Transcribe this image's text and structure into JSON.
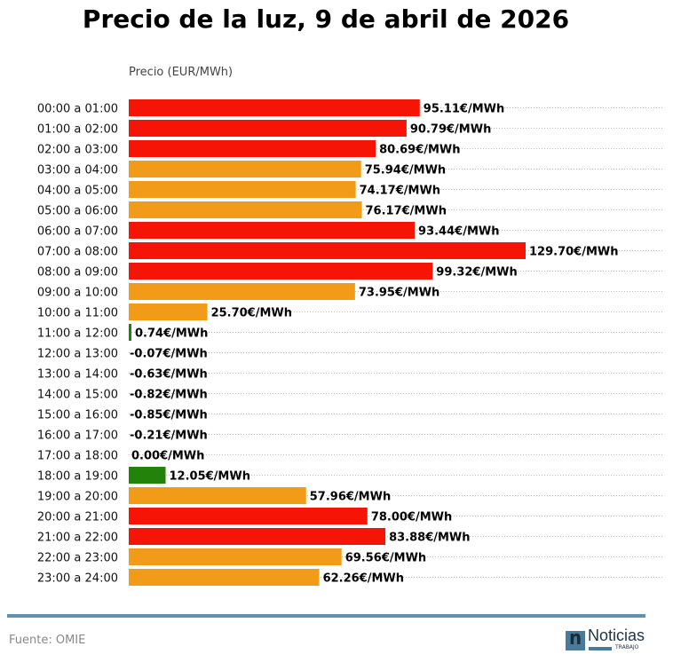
{
  "title": "Precio de la luz, 9 de abril de 2026",
  "footer": {
    "source": "Fuente: OMIE",
    "logo_word": "Noticias",
    "logo_sub": "TRABAJO",
    "logo_letter": "n"
  },
  "colors": {
    "high": "#f51406",
    "mid": "#f29b18",
    "low": "#23820a",
    "grid": "#bbbbbb"
  },
  "chart_data": {
    "type": "bar",
    "orientation": "horizontal",
    "title": "Precio de la luz, 9 de abril de 2026",
    "xlabel": "",
    "ylabel": "Precio (EUR/MWh)",
    "grid": true,
    "unit_suffix": "€/MWh",
    "categories": [
      "00:00 a 01:00",
      "01:00 a 02:00",
      "02:00 a 03:00",
      "03:00 a 04:00",
      "04:00 a 05:00",
      "05:00 a 06:00",
      "06:00 a 07:00",
      "07:00 a 08:00",
      "08:00 a 09:00",
      "09:00 a 10:00",
      "10:00 a 11:00",
      "11:00 a 12:00",
      "12:00 a 13:00",
      "13:00 a 14:00",
      "14:00 a 15:00",
      "15:00 a 16:00",
      "16:00 a 17:00",
      "17:00 a 18:00",
      "18:00 a 19:00",
      "19:00 a 20:00",
      "20:00 a 21:00",
      "21:00 a 22:00",
      "22:00 a 23:00",
      "23:00 a 24:00"
    ],
    "values": [
      95.11,
      90.79,
      80.69,
      75.94,
      74.17,
      76.17,
      93.44,
      129.7,
      99.32,
      73.95,
      25.7,
      0.74,
      -0.07,
      -0.63,
      -0.82,
      -0.85,
      -0.21,
      0.0,
      12.05,
      57.96,
      78.0,
      83.88,
      69.56,
      62.26
    ],
    "labels": [
      "95.11€/MWh",
      "90.79€/MWh",
      "80.69€/MWh",
      "75.94€/MWh",
      "74.17€/MWh",
      "76.17€/MWh",
      "93.44€/MWh",
      "129.70€/MWh",
      "99.32€/MWh",
      "73.95€/MWh",
      "25.70€/MWh",
      "0.74€/MWh",
      "-0.07€/MWh",
      "-0.63€/MWh",
      "-0.82€/MWh",
      "-0.85€/MWh",
      "-0.21€/MWh",
      "0.00€/MWh",
      "12.05€/MWh",
      "57.96€/MWh",
      "78.00€/MWh",
      "83.88€/MWh",
      "69.56€/MWh",
      "62.26€/MWh"
    ],
    "bar_colors": [
      "high",
      "high",
      "high",
      "mid",
      "mid",
      "mid",
      "high",
      "high",
      "high",
      "mid",
      "mid",
      "low",
      "low",
      "low",
      "low",
      "low",
      "low",
      "low",
      "low",
      "mid",
      "high",
      "high",
      "mid",
      "mid"
    ],
    "xlim": [
      0,
      130
    ]
  }
}
